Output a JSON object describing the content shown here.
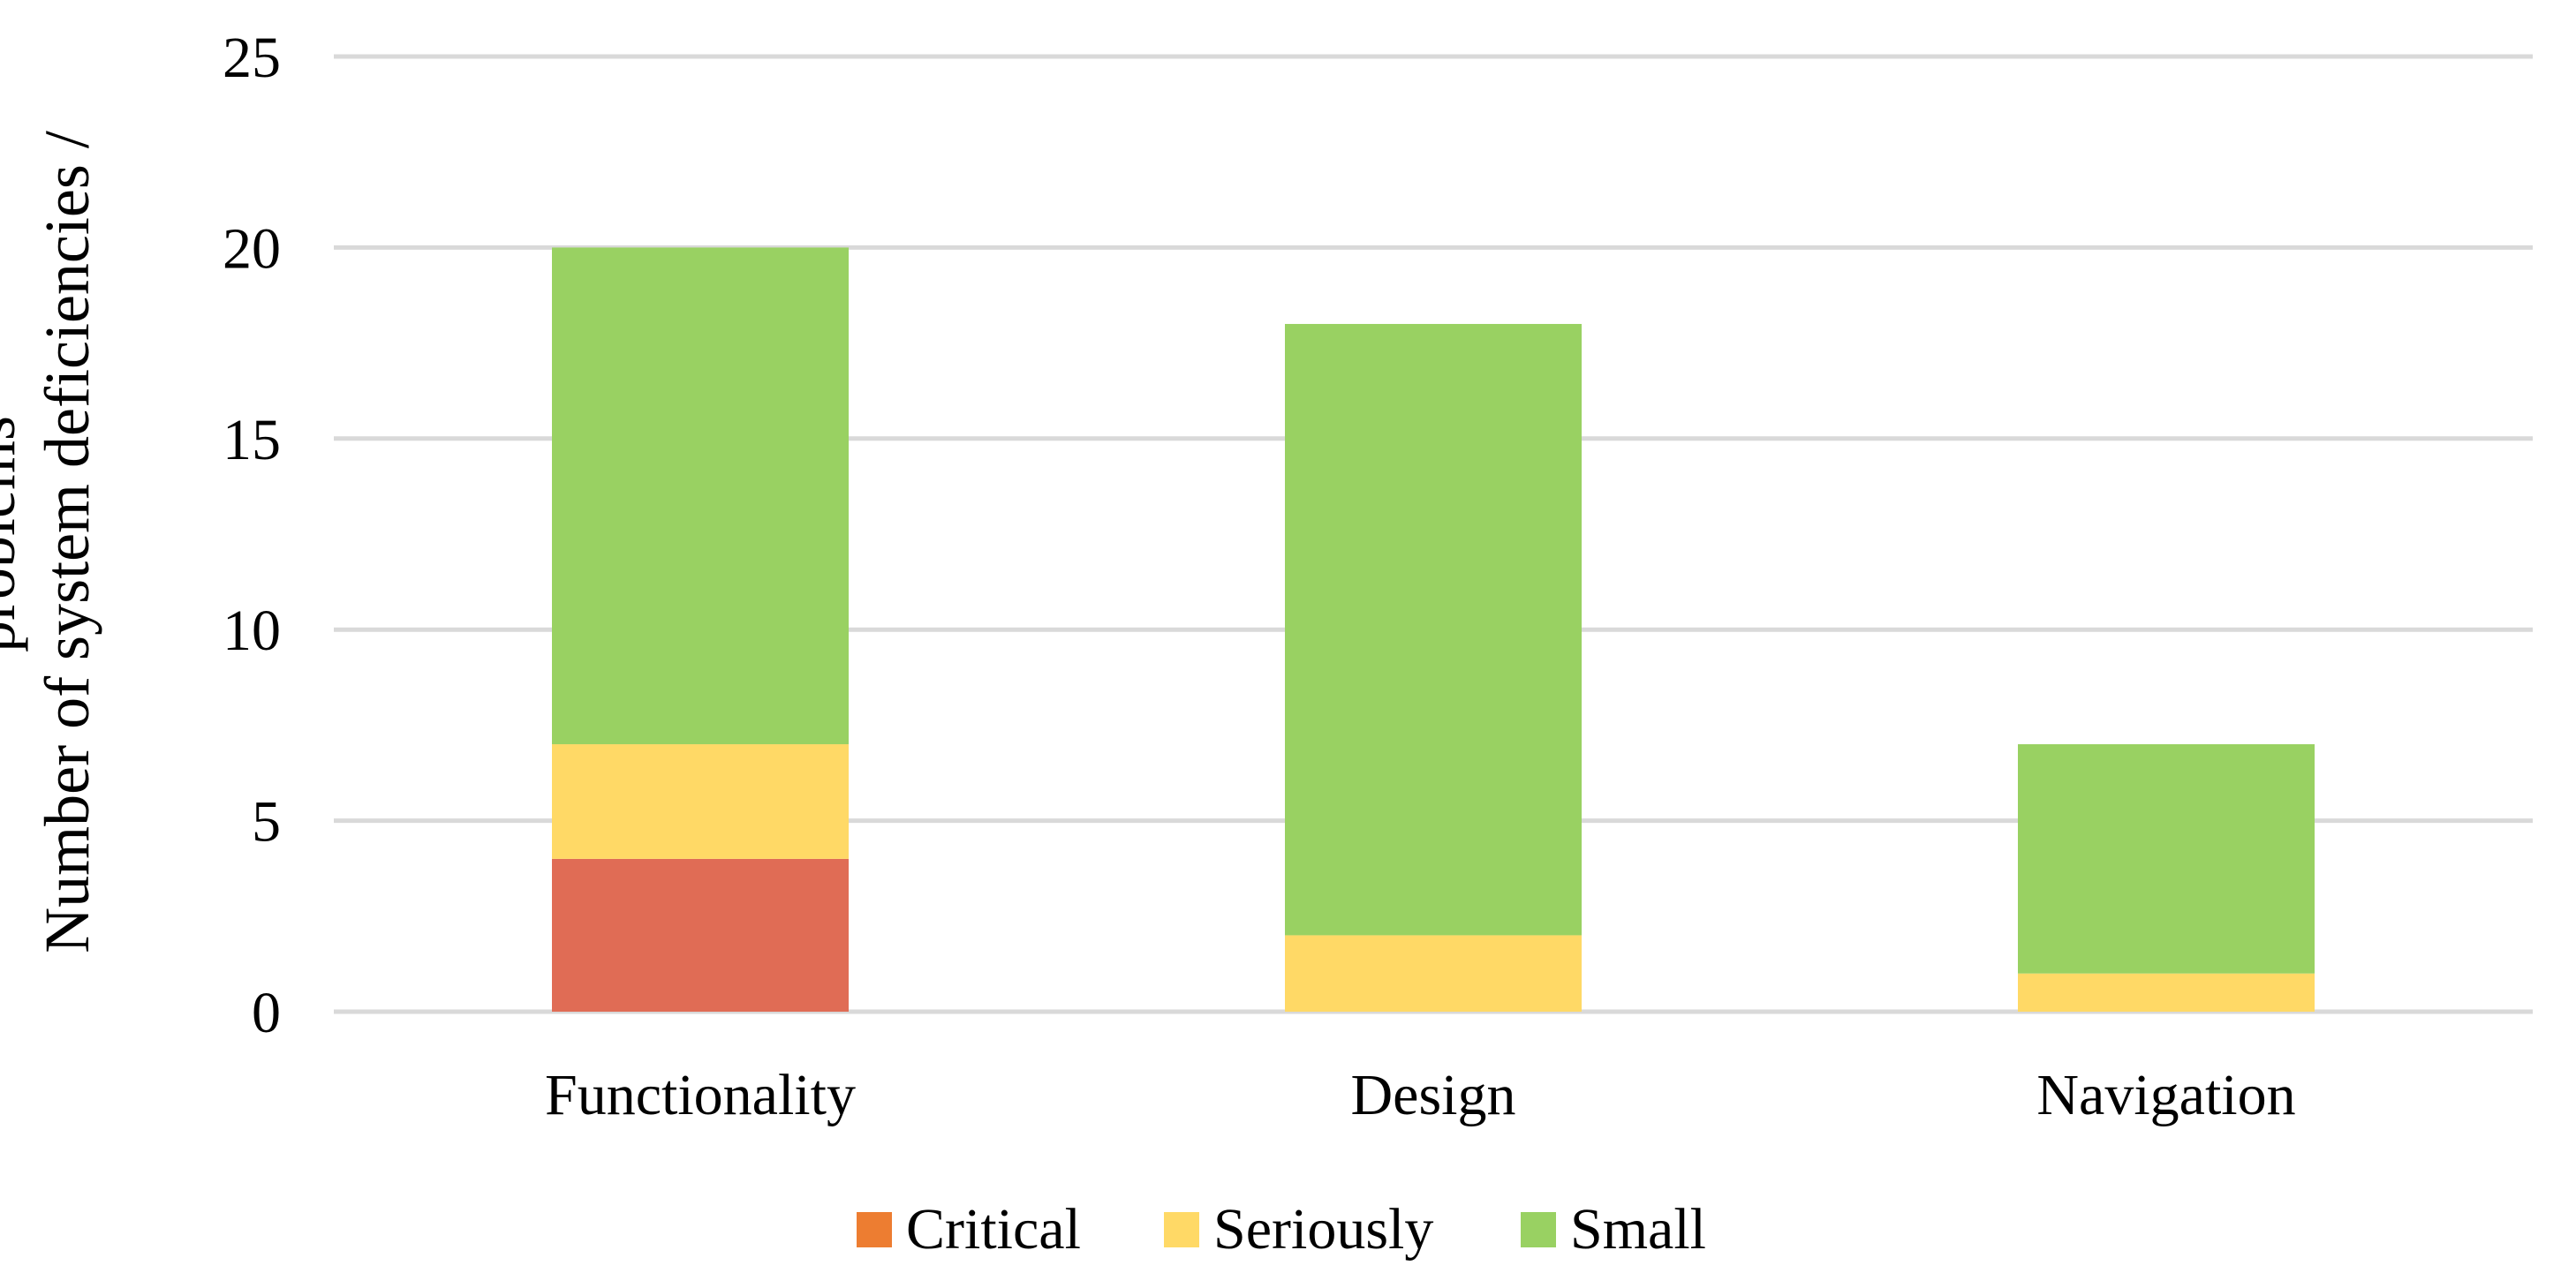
{
  "chart_data": {
    "type": "bar",
    "stacked": true,
    "title": "",
    "xlabel": "",
    "ylabel_lines": [
      "Number of system deficiencies /",
      "problems"
    ],
    "categories": [
      "Functionality",
      "Design",
      "Navigation"
    ],
    "series": [
      {
        "name": "Critical",
        "values": [
          4,
          0,
          0
        ],
        "color": "#e06c55",
        "legend_color": "#ed7d31"
      },
      {
        "name": "Seriously",
        "values": [
          3,
          2,
          1
        ],
        "color": "#ffd966",
        "legend_color": "#ffd966"
      },
      {
        "name": "Small",
        "values": [
          13,
          16,
          6
        ],
        "color": "#99d162",
        "legend_color": "#99d162"
      }
    ],
    "ylim": [
      0,
      25
    ],
    "yticks": [
      0,
      5,
      10,
      15,
      20,
      25
    ],
    "grid": true,
    "legend_position": "bottom-center"
  }
}
